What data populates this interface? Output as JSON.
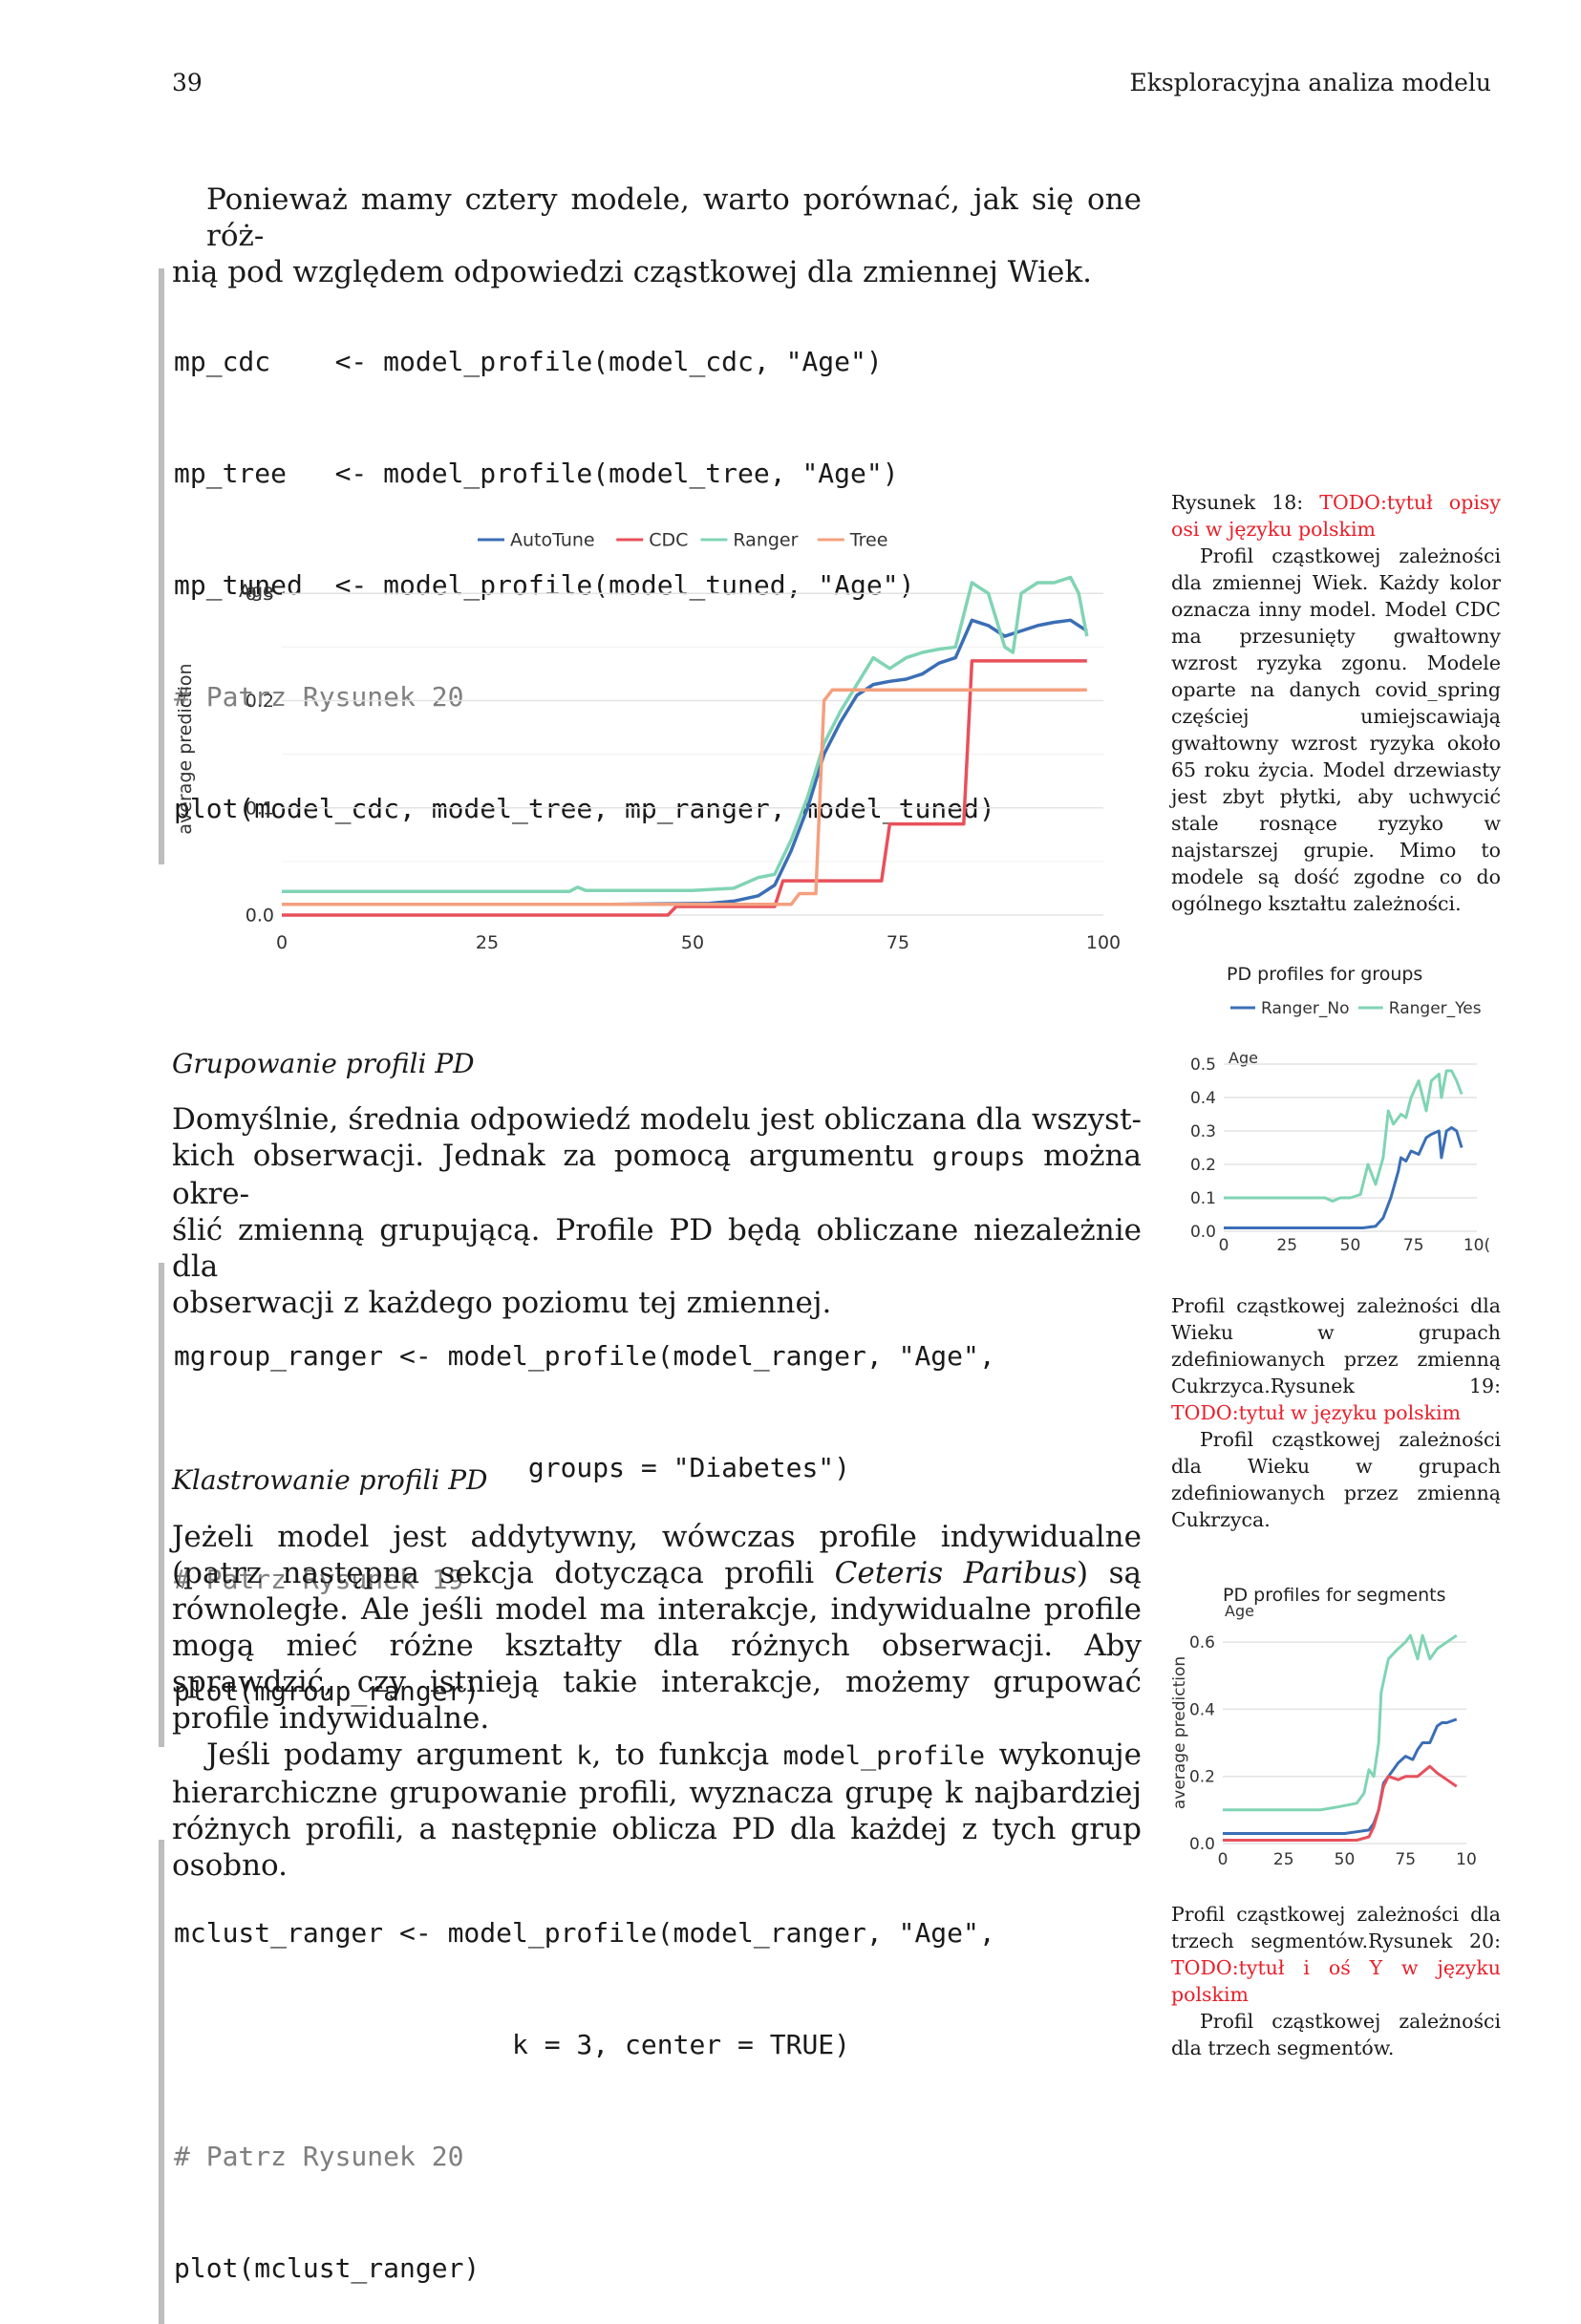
{
  "header": {
    "page_number": "39",
    "running_title": "Eksploracyjna analiza modelu"
  },
  "intro": {
    "line1": "Ponieważ mamy cztery modele, warto porównać, jak się one róż-",
    "line2": "nią pod względem odpowiedzi cząstkowej dla zmiennej Wiek."
  },
  "code1": {
    "lines": [
      "mp_cdc    <- model_profile(model_cdc, \"Age\")",
      "mp_tree   <- model_profile(model_tree, \"Age\")",
      "mp_tuned  <- model_profile(model_tuned, \"Age\")",
      "# Patrz Rysunek 20",
      "plot(model_cdc, model_tree, mp_ranger, model_tuned)"
    ]
  },
  "fig18": {
    "caption_prefix": "Rysunek 18: ",
    "caption_todo": "TODO:tytuł opisy osi w języku polskim",
    "caption_body": "Profil cząstkowej zależności dla zmiennej Wiek. Każdy kolor oznacza inny model. Model CDC ma przesunięty gwałtowny wzrost ryzyka zgonu. Modele oparte na danych covid_spring częściej umiejscawiają gwałtowny wzrost ryzyka około 65 roku życia. Model drzewiasty jest zbyt płytki, aby uchwycić stale rosnące ryzyko w najstarszej grupie. Mimo to modele są dość zgodne co do ogólnego kształtu zależności."
  },
  "section_groups": {
    "title": "Grupowanie profili PD",
    "para": [
      "Domyślnie, średnia odpowiedź modelu jest obliczana dla wszyst-",
      "kich obserwacji. Jednak za pomocą argumentu ",
      "groups",
      " można okre-",
      "ślić zmienną grupującą. Profile PD będą obliczane niezależnie dla",
      "obserwacji z każdego poziomu tej zmiennej."
    ]
  },
  "code2": {
    "lines": [
      "mgroup_ranger <- model_profile(model_ranger, \"Age\",",
      "                      groups = \"Diabetes\")",
      "# Patrz Rysunek 19",
      "plot(mgroup_ranger)"
    ]
  },
  "fig19": {
    "caption_lead": "Profil cząstkowej zależności dla Wieku w grupach zdefiniowanych przez zmienną Cukrzyca.",
    "caption_prefix": "Rysunek 19: ",
    "caption_todo": "TODO:tytuł w języku polskim",
    "caption_body": "Profil cząstkowej zależności dla Wieku w grupach zdefiniowanych przez zmienną Cukrzyca."
  },
  "section_clusters": {
    "title": "Klastrowanie profili PD",
    "p1a": "Jeżeli model jest addytywny, wówczas profile indywidualne (patrz następna sekcja dotycząca profili ",
    "p1_italic": "Ceteris Paribus",
    "p1b": ") są równoległe. Ale jeśli model ma interakcje, indywidualne profile mogą mieć różne kształty dla różnych obserwacji. Aby sprawdzić, czy istnieją takie interakcje, możemy grupować profile indywidualne.",
    "p2a": "Jeśli podamy argument ",
    "p2_code1": "k",
    "p2b": ", to funkcja ",
    "p2_code2": "model_profile",
    "p2c": " wykonuje hierarchiczne grupowanie profili, wyznacza grupę k najbardziej różnych profili, a następnie oblicza PD dla każdej z tych grup osobno."
  },
  "code3": {
    "lines": [
      "mclust_ranger <- model_profile(model_ranger, \"Age\",",
      "                     k = 3, center = TRUE)",
      "# Patrz Rysunek 20",
      "plot(mclust_ranger)"
    ]
  },
  "fig20": {
    "caption_lead": "Profil cząstkowej zależności dla trzech segmentów.",
    "caption_prefix": "Rysunek 20: ",
    "caption_todo": "TODO:tytuł i oś Y w języku polskim",
    "caption_body": "Profil cząstkowej zależności dla trzech segmentów."
  },
  "chart_data": [
    {
      "type": "line",
      "title": "",
      "subtitle": "Age",
      "xlabel": "",
      "ylabel": "average prediction",
      "xlim": [
        0,
        100
      ],
      "ylim": [
        0,
        0.31
      ],
      "xticks": [
        "0",
        "25",
        "50",
        "75",
        "100"
      ],
      "yticks": [
        "0.0",
        "0.1",
        "0.2",
        "0.3"
      ],
      "legend": "top",
      "series": [
        {
          "name": "AutoTune",
          "color": "#3b6eb5",
          "x": [
            0,
            40,
            52,
            55,
            58,
            60,
            62,
            64,
            66,
            68,
            70,
            72,
            74,
            76,
            78,
            80,
            82,
            84,
            86,
            88,
            90,
            92,
            94,
            96,
            98
          ],
          "y": [
            0.01,
            0.01,
            0.011,
            0.013,
            0.018,
            0.028,
            0.06,
            0.1,
            0.15,
            0.18,
            0.205,
            0.215,
            0.218,
            0.22,
            0.225,
            0.235,
            0.24,
            0.275,
            0.27,
            0.26,
            0.265,
            0.27,
            0.273,
            0.275,
            0.265
          ]
        },
        {
          "name": "CDC",
          "color": "#e8505b",
          "x": [
            0,
            47,
            48,
            60,
            61,
            73,
            74,
            83,
            84,
            98
          ],
          "y": [
            0.0,
            0.0,
            0.008,
            0.008,
            0.032,
            0.032,
            0.085,
            0.085,
            0.237,
            0.237
          ]
        },
        {
          "name": "Ranger",
          "color": "#80d4b4",
          "x": [
            0,
            35,
            36,
            37,
            50,
            55,
            58,
            60,
            62,
            64,
            66,
            68,
            70,
            72,
            74,
            76,
            78,
            80,
            82,
            84,
            85,
            86,
            88,
            89,
            90,
            91,
            92,
            94,
            96,
            97,
            98
          ],
          "y": [
            0.022,
            0.022,
            0.026,
            0.023,
            0.023,
            0.025,
            0.035,
            0.038,
            0.07,
            0.11,
            0.16,
            0.19,
            0.215,
            0.24,
            0.23,
            0.24,
            0.245,
            0.248,
            0.25,
            0.31,
            0.305,
            0.3,
            0.25,
            0.245,
            0.3,
            0.305,
            0.31,
            0.31,
            0.315,
            0.3,
            0.26
          ]
        },
        {
          "name": "Tree",
          "color": "#f4a07e",
          "x": [
            0,
            62,
            63,
            65,
            66,
            67,
            98
          ],
          "y": [
            0.01,
            0.01,
            0.02,
            0.02,
            0.2,
            0.21,
            0.21
          ]
        }
      ]
    },
    {
      "type": "line",
      "title": "PD profiles for groups",
      "subtitle": "Age",
      "xlim": [
        0,
        100
      ],
      "ylim": [
        0,
        0.5
      ],
      "xticks": [
        "0",
        "25",
        "50",
        "75",
        "10("
      ],
      "yticks": [
        "0.0",
        "0.1",
        "0.2",
        "0.3",
        "0.4",
        "0.5"
      ],
      "legend": "top",
      "series": [
        {
          "name": "Ranger_No",
          "color": "#3b6eb5",
          "x": [
            0,
            55,
            60,
            63,
            66,
            69,
            70,
            72,
            74,
            77,
            80,
            82,
            85,
            86,
            88,
            90,
            92,
            94
          ],
          "y": [
            0.01,
            0.01,
            0.015,
            0.04,
            0.1,
            0.18,
            0.22,
            0.21,
            0.24,
            0.23,
            0.28,
            0.29,
            0.3,
            0.22,
            0.3,
            0.31,
            0.3,
            0.25
          ]
        },
        {
          "name": "Ranger_Yes",
          "color": "#80d4b4",
          "x": [
            0,
            40,
            43,
            46,
            50,
            54,
            57,
            60,
            63,
            65,
            67,
            70,
            72,
            74,
            77,
            80,
            82,
            85,
            86,
            88,
            90,
            92,
            94
          ],
          "y": [
            0.1,
            0.1,
            0.09,
            0.1,
            0.1,
            0.11,
            0.2,
            0.14,
            0.22,
            0.36,
            0.32,
            0.35,
            0.34,
            0.4,
            0.45,
            0.36,
            0.45,
            0.47,
            0.4,
            0.48,
            0.48,
            0.45,
            0.41
          ]
        }
      ]
    },
    {
      "type": "line",
      "title": "PD profiles for segments",
      "subtitle": "Age",
      "ylabel": "average prediction",
      "xlim": [
        0,
        100
      ],
      "ylim": [
        0,
        0.66
      ],
      "xticks": [
        "0",
        "25",
        "50",
        "75",
        "10"
      ],
      "yticks": [
        "0.0",
        "0.2",
        "0.4",
        "0.6"
      ],
      "series": [
        {
          "color": "#80d4b4",
          "x": [
            0,
            35,
            40,
            48,
            55,
            58,
            60,
            62,
            64,
            65,
            68,
            72,
            75,
            77,
            80,
            82,
            85,
            88,
            92,
            96
          ],
          "y": [
            0.1,
            0.1,
            0.1,
            0.11,
            0.12,
            0.15,
            0.22,
            0.2,
            0.3,
            0.45,
            0.55,
            0.58,
            0.6,
            0.62,
            0.55,
            0.62,
            0.55,
            0.58,
            0.6,
            0.62
          ]
        },
        {
          "color": "#3b6eb5",
          "x": [
            0,
            50,
            55,
            60,
            62,
            64,
            66,
            68,
            70,
            72,
            75,
            78,
            80,
            82,
            85,
            88,
            90,
            92,
            96
          ],
          "y": [
            0.03,
            0.03,
            0.035,
            0.04,
            0.06,
            0.1,
            0.18,
            0.2,
            0.22,
            0.24,
            0.26,
            0.25,
            0.28,
            0.3,
            0.3,
            0.35,
            0.36,
            0.36,
            0.37
          ]
        },
        {
          "color": "#e8505b",
          "x": [
            0,
            55,
            60,
            62,
            64,
            66,
            68,
            72,
            75,
            80,
            85,
            88,
            92,
            96
          ],
          "y": [
            0.01,
            0.01,
            0.02,
            0.05,
            0.1,
            0.17,
            0.2,
            0.19,
            0.2,
            0.2,
            0.23,
            0.21,
            0.19,
            0.17
          ]
        }
      ]
    }
  ]
}
